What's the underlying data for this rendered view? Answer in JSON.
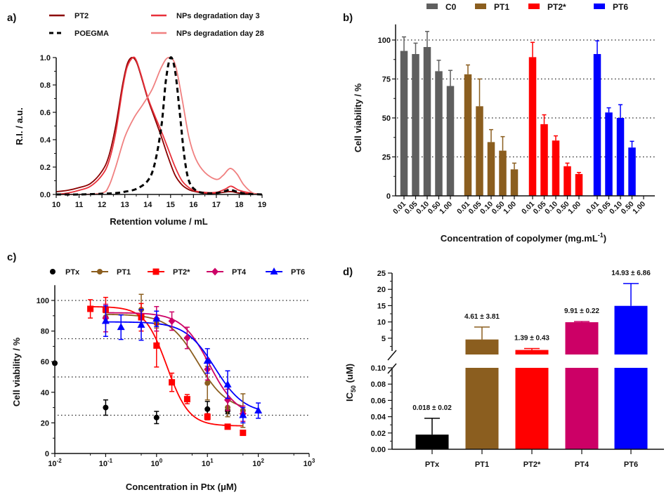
{
  "chart_data": [
    {
      "panel": "a)",
      "type": "line",
      "title": "",
      "xlabel": "Retention volume / mL",
      "ylabel": "R.I. / a.u.",
      "xlim": [
        10,
        19
      ],
      "ylim": [
        0,
        1.0
      ],
      "xticks": [
        "10",
        "11",
        "12",
        "13",
        "14",
        "15",
        "16",
        "17",
        "18",
        "19"
      ],
      "yticks": [
        "0.0",
        "0.2",
        "0.4",
        "0.6",
        "0.8",
        "1.0"
      ],
      "legend": [
        {
          "name": "PT2",
          "color": "#8b0000",
          "style": "solid"
        },
        {
          "name": "POEGMA",
          "color": "#000000",
          "style": "dashed"
        },
        {
          "name": "NPs degradation day 3",
          "color": "#e8303a",
          "style": "solid"
        },
        {
          "name": "NPs degradation day 28",
          "color": "#f08080",
          "style": "solid"
        }
      ],
      "series": [
        {
          "name": "PT2",
          "color": "#8b0000",
          "dash": false,
          "x": [
            10,
            10.5,
            11,
            11.5,
            12,
            12.3,
            12.6,
            12.9,
            13.1,
            13.3,
            13.5,
            13.7,
            14,
            14.3,
            14.6,
            14.9,
            15.2,
            15.5,
            15.8,
            16.1,
            16.5,
            17,
            17.5,
            17.7,
            18,
            18.5,
            19
          ],
          "y": [
            0.02,
            0.03,
            0.05,
            0.08,
            0.17,
            0.28,
            0.5,
            0.8,
            0.95,
            1.0,
            0.97,
            0.87,
            0.7,
            0.56,
            0.42,
            0.27,
            0.14,
            0.07,
            0.035,
            0.02,
            0.01,
            0.01,
            0.02,
            0.02,
            0.01,
            0.005,
            0
          ]
        },
        {
          "name": "NPs degradation day 3",
          "color": "#e8303a",
          "dash": false,
          "x": [
            10,
            10.5,
            11,
            11.5,
            12,
            12.3,
            12.6,
            12.9,
            13.1,
            13.35,
            13.5,
            13.7,
            14,
            14.3,
            14.6,
            14.9,
            15.2,
            15.5,
            15.8,
            16.1,
            16.5,
            17,
            17.4,
            17.65,
            18,
            18.5,
            19
          ],
          "y": [
            0.0,
            0.01,
            0.03,
            0.06,
            0.14,
            0.24,
            0.45,
            0.77,
            0.93,
            1.0,
            0.98,
            0.88,
            0.71,
            0.58,
            0.46,
            0.33,
            0.2,
            0.1,
            0.05,
            0.025,
            0.015,
            0.015,
            0.04,
            0.06,
            0.03,
            0.01,
            0
          ]
        },
        {
          "name": "NPs degradation day 28",
          "color": "#f08080",
          "dash": false,
          "x": [
            10,
            11,
            12,
            12.3,
            12.6,
            13,
            13.4,
            13.8,
            14.2,
            14.6,
            14.9,
            15.2,
            15.5,
            15.8,
            16.1,
            16.5,
            17,
            17.3,
            17.6,
            17.9,
            18.2,
            18.6,
            19
          ],
          "y": [
            0,
            0,
            0.01,
            0.06,
            0.2,
            0.42,
            0.56,
            0.66,
            0.77,
            0.93,
            1.0,
            0.95,
            0.7,
            0.42,
            0.26,
            0.16,
            0.11,
            0.14,
            0.19,
            0.15,
            0.07,
            0.01,
            0
          ]
        },
        {
          "name": "POEGMA",
          "color": "#000000",
          "dash": true,
          "x": [
            10,
            11,
            12,
            12.6,
            13,
            13.5,
            14,
            14.3,
            14.6,
            14.8,
            15.0,
            15.2,
            15.4,
            15.6,
            15.8,
            16.1,
            16.5,
            17,
            17.4,
            17.6,
            17.9,
            18.3,
            19
          ],
          "y": [
            0,
            0,
            0.005,
            0.01,
            0.02,
            0.04,
            0.1,
            0.22,
            0.5,
            0.84,
            1.0,
            0.9,
            0.6,
            0.28,
            0.1,
            0.03,
            0.01,
            0.01,
            0.025,
            0.035,
            0.02,
            0.005,
            0
          ]
        }
      ]
    },
    {
      "panel": "b)",
      "type": "bar",
      "xlabel": "Concentration of copolymer (mg.mL",
      "xlabel_sup": "-1",
      "xlabel_end": ")",
      "ylabel": "Cell viability / %",
      "ylim": [
        0,
        110
      ],
      "yticks": [
        "0",
        "25",
        "50",
        "75",
        "100"
      ],
      "grid": "dotted horizontal at 25, 50, 75, 100",
      "categories": [
        "0.01",
        "0.05",
        "0.10",
        "0.50",
        "1.00"
      ],
      "series": [
        {
          "name": "C0",
          "color": "#5f5f5f",
          "values": [
            93,
            91,
            95.5,
            80,
            70.5
          ],
          "errors": [
            9,
            7,
            10,
            7,
            10
          ]
        },
        {
          "name": "PT1",
          "color": "#8b5e1f",
          "values": [
            78,
            57.5,
            34.5,
            29,
            17
          ],
          "errors": [
            6,
            17.5,
            8,
            9,
            4
          ]
        },
        {
          "name": "PT2*",
          "color": "#ff0000",
          "values": [
            89,
            46,
            35.5,
            19,
            14
          ],
          "errors": [
            9.5,
            6,
            3,
            2,
            1
          ]
        },
        {
          "name": "PT6",
          "color": "#0000ff",
          "values": [
            91,
            53.5,
            50,
            31,
            null
          ],
          "errors": [
            8.5,
            3,
            8.5,
            4,
            null
          ]
        }
      ]
    },
    {
      "panel": "c)",
      "type": "scatter",
      "xlabel": "Concentration in Ptx (μM)",
      "ylabel": "Cell viability / %",
      "xscale": "log",
      "xlim": [
        0.01,
        1000
      ],
      "ylim": [
        0,
        110
      ],
      "xticks": [
        {
          "base": "10",
          "exp": "-2"
        },
        {
          "base": "10",
          "exp": "-1"
        },
        {
          "base": "10",
          "exp": "0"
        },
        {
          "base": "10",
          "exp": "1"
        },
        {
          "base": "10",
          "exp": "2"
        },
        {
          "base": "10",
          "exp": "3"
        }
      ],
      "yticks": [
        "0",
        "20",
        "40",
        "60",
        "80",
        "100"
      ],
      "grid": "dotted horizontal at 25, 50, 75, 100",
      "series": [
        {
          "name": "PTx",
          "color": "#000000",
          "marker": "circle",
          "fit": null,
          "x": [
            0.01,
            0.1,
            1,
            10,
            25
          ],
          "y": [
            59,
            30,
            23.5,
            29,
            28
          ],
          "errors": [
            0,
            5,
            4,
            5,
            2
          ]
        },
        {
          "name": "PT1",
          "color": "#8b5e1f",
          "marker": "circle",
          "fit": {
            "top": 91,
            "bottom": 28,
            "ec50": 6.5,
            "hill": 1.5
          },
          "x": [
            0.1,
            0.5,
            1,
            10,
            25,
            50
          ],
          "y": [
            89,
            94,
            85,
            46,
            30,
            28
          ],
          "errors": [
            3,
            10,
            3,
            11,
            6,
            11
          ]
        },
        {
          "name": "PT2*",
          "color": "#ff0000",
          "marker": "square",
          "fit": {
            "top": 96,
            "bottom": 18,
            "ec50": 1.6,
            "hill": 2.0
          },
          "x": [
            0.05,
            0.1,
            0.5,
            1,
            2,
            4,
            10,
            25,
            50
          ],
          "y": [
            94.5,
            94,
            89,
            70.5,
            46.5,
            35.5,
            24,
            17.5,
            13.5
          ],
          "errors": [
            6,
            8,
            9,
            14,
            6,
            3,
            2,
            1,
            1.5
          ]
        },
        {
          "name": "PT4",
          "color": "#cc0066",
          "marker": "diamond",
          "fit": {
            "top": 92,
            "bottom": 24,
            "ec50": 11,
            "hill": 1.6
          },
          "x": [
            0.1,
            1,
            2,
            4,
            10,
            25,
            50
          ],
          "y": [
            88.5,
            88,
            86.5,
            75.5,
            55,
            35,
            26
          ],
          "errors": [
            9,
            8,
            6,
            7,
            7,
            7,
            5
          ]
        },
        {
          "name": "PT6",
          "color": "#0000ff",
          "marker": "triangle",
          "fit": {
            "top": 86,
            "bottom": 26,
            "ec50": 14,
            "hill": 1.5
          },
          "x": [
            0.1,
            0.2,
            0.5,
            1,
            10,
            25,
            50,
            100
          ],
          "y": [
            86.5,
            82.5,
            84,
            88,
            60.5,
            45,
            25,
            28
          ],
          "errors": [
            10,
            8,
            10,
            5,
            8,
            9,
            5,
            5
          ]
        }
      ]
    },
    {
      "panel": "d)",
      "type": "bar",
      "xlabel": "",
      "ylabel": "IC",
      "ylabel_sub": "50",
      "ylabel_end": " (uM)",
      "yaxis_break": true,
      "ylim_lower": [
        0,
        0.1
      ],
      "ylim_upper": [
        0,
        25
      ],
      "yticks_lower": [
        "0.00",
        "0.02",
        "0.04",
        "0.06",
        "0.08",
        "0.10"
      ],
      "yticks_upper": [
        "5",
        "10",
        "15",
        "20",
        "25"
      ],
      "categories": [
        "PTx",
        "PT1",
        "PT2*",
        "PT4",
        "PT6"
      ],
      "colors": [
        "#000000",
        "#8b5e1f",
        "#ff0000",
        "#cc0066",
        "#0000ff"
      ],
      "values": [
        0.018,
        4.61,
        1.39,
        9.91,
        14.93
      ],
      "errors": [
        0.02,
        3.81,
        0.43,
        0.22,
        6.86
      ],
      "data_labels": [
        "0.018 ± 0.02",
        "4.61 ± 3.81",
        "1.39 ± 0.43",
        "9.91 ± 0.22",
        "14.93 ± 6.86"
      ]
    }
  ]
}
